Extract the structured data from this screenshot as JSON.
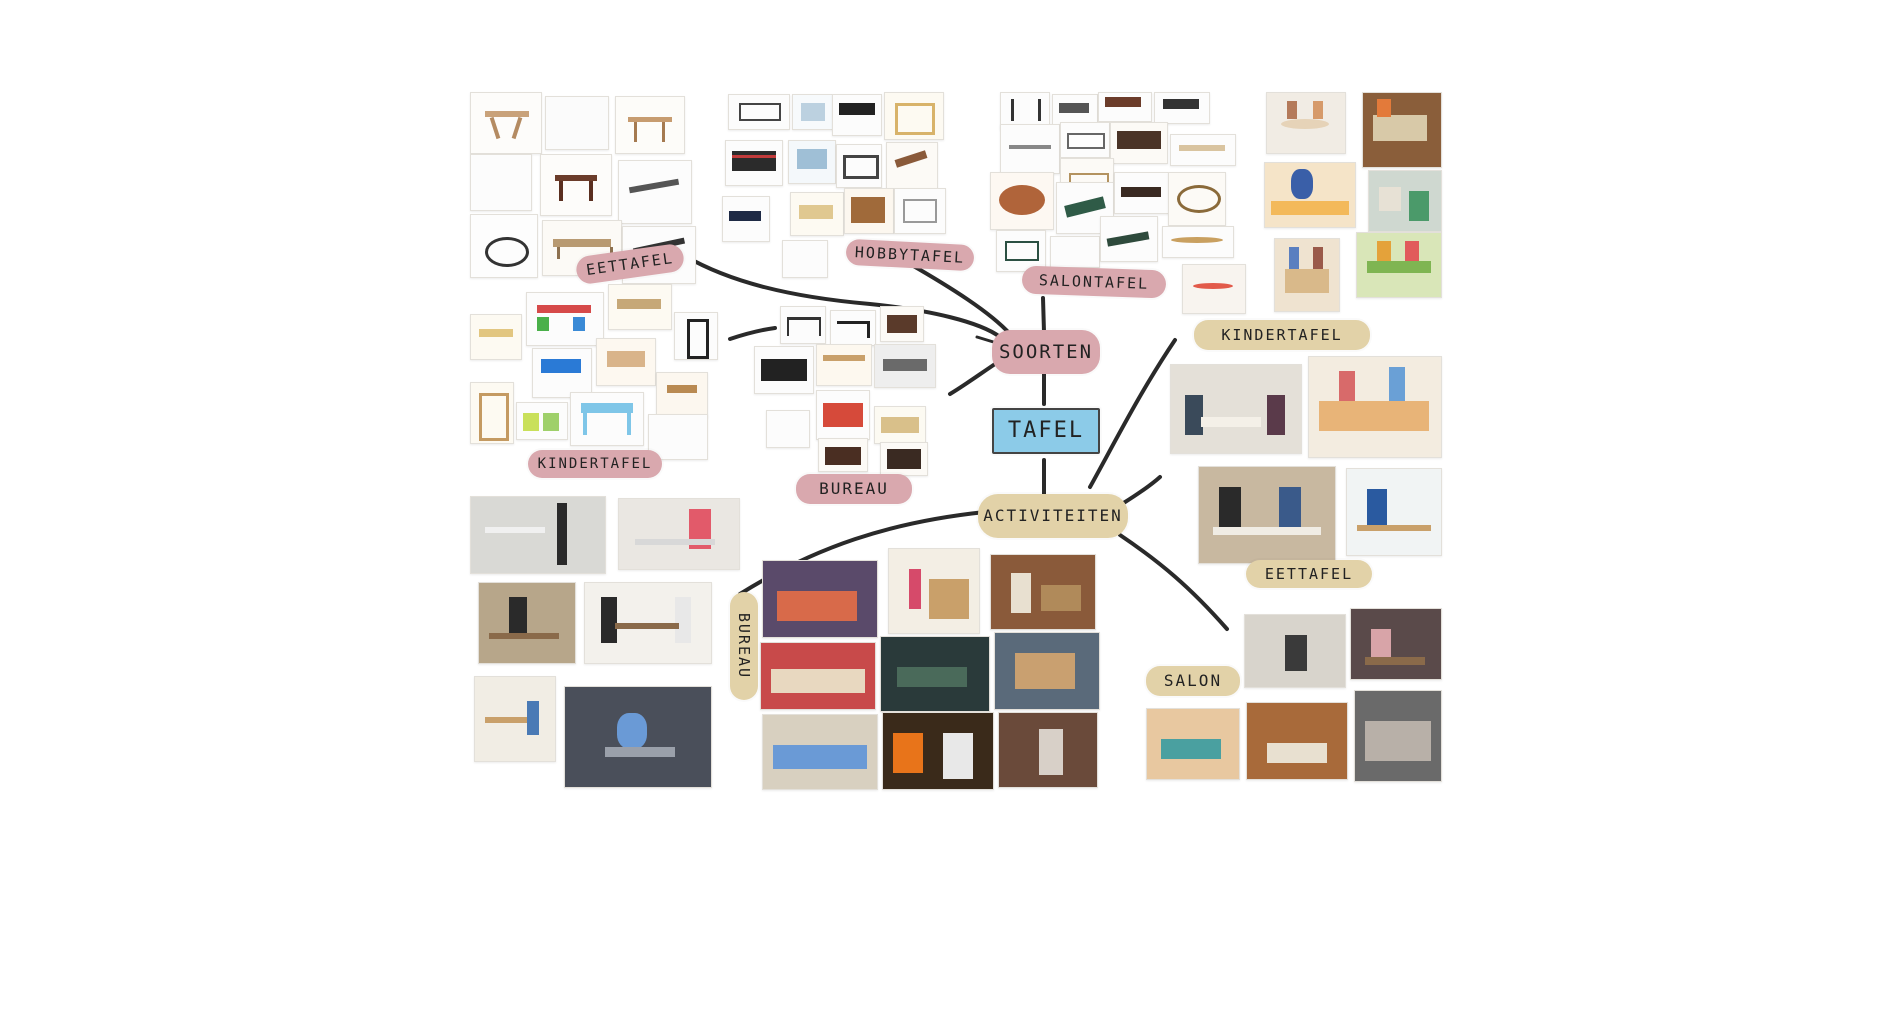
{
  "colors": {
    "pink_tag": "#d9a8ae",
    "tan_tag": "#e2d2a8",
    "blue_tag": "#8ccbe8",
    "connector": "#2a2a2a"
  },
  "nodes": {
    "center": "TAFEL",
    "soorten": "SOORTEN",
    "activiteiten": "ACTIVITEITEN",
    "eettafel_top": "EETTAFEL",
    "hobbytafel": "HOBBYTAFEL",
    "salontafel": "SALONTAFEL",
    "kindertafel_left": "KINDERTAFEL",
    "bureau_mid": "BUREAU",
    "kindertafel_right": "KINDERTAFEL",
    "eettafel_right": "EETTAFEL",
    "bureau_left": "BUREAU",
    "salon": "SALON"
  },
  "edges": [
    [
      "center",
      "soorten"
    ],
    [
      "center",
      "activiteiten"
    ],
    [
      "soorten",
      "eettafel_top"
    ],
    [
      "soorten",
      "hobbytafel"
    ],
    [
      "soorten",
      "salontafel"
    ],
    [
      "soorten",
      "kindertafel_left"
    ],
    [
      "soorten",
      "bureau_mid"
    ],
    [
      "activiteiten",
      "kindertafel_right"
    ],
    [
      "activiteiten",
      "eettafel_right"
    ],
    [
      "activiteiten",
      "bureau_left"
    ],
    [
      "activiteiten",
      "salon"
    ]
  ]
}
